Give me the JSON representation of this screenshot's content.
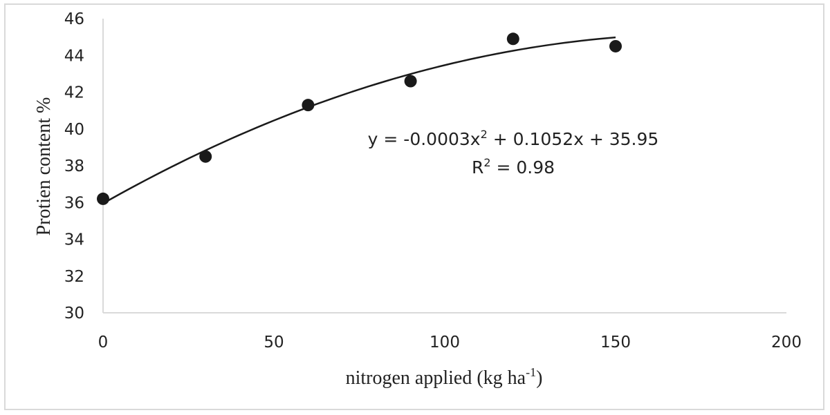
{
  "chart_data": {
    "type": "scatter",
    "xlabel": "nitrogen applied (kg ha",
    "xlabel_sup": "-1",
    "xlabel_tail": ")",
    "ylabel": "Protien content %",
    "xlim": [
      0,
      200
    ],
    "ylim": [
      30,
      46
    ],
    "xticks": [
      "0",
      "50",
      "100",
      "150",
      "200"
    ],
    "yticks": [
      "30",
      "32",
      "34",
      "36",
      "38",
      "40",
      "42",
      "44",
      "46"
    ],
    "points": [
      {
        "x": 0,
        "y": 36.2
      },
      {
        "x": 30,
        "y": 38.5
      },
      {
        "x": 60,
        "y": 41.3
      },
      {
        "x": 90,
        "y": 42.6
      },
      {
        "x": 120,
        "y": 44.9
      },
      {
        "x": 150,
        "y": 44.5
      }
    ],
    "trendline": {
      "type": "polynomial",
      "coefficients": [
        -0.0003,
        0.1052,
        35.95
      ],
      "x_range": [
        0,
        150
      ],
      "equation_prefix": "y = -0.0003x",
      "equation_sup": "2",
      "equation_suffix": " + 0.1052x + 35.95",
      "r2_prefix": "R",
      "r2_sup": "2",
      "r2_suffix": " = 0.98"
    },
    "colors": {
      "marker": "#1a1a1a",
      "line": "#1a1a1a",
      "axis": "#d9d9d9",
      "text": "#222222"
    },
    "grid": false,
    "legend": "none"
  }
}
